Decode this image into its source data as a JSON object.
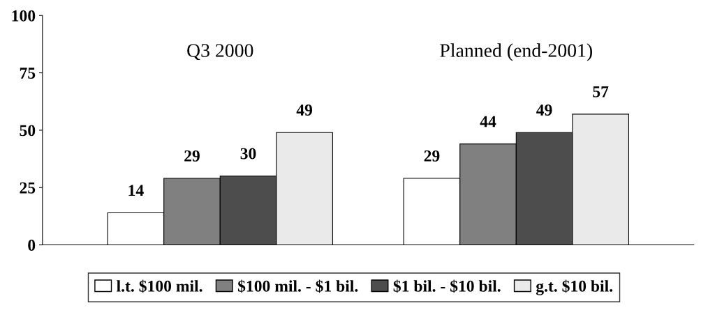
{
  "chart_data": {
    "type": "bar",
    "categories": [
      "Q3 2000",
      "Planned (end-2001)"
    ],
    "series": [
      {
        "name": "l.t. $100 mil.",
        "color": "#ffffff",
        "values": [
          14,
          29
        ]
      },
      {
        "name": "$100 mil. - $1 bil.",
        "color": "#808080",
        "values": [
          29,
          44
        ]
      },
      {
        "name": "$1 bil. - $10 bil.",
        "color": "#4d4d4d",
        "values": [
          30,
          49
        ]
      },
      {
        "name": "g.t. $10 bil.",
        "color": "#eaeaea",
        "values": [
          49,
          57
        ]
      }
    ],
    "ylim": [
      0,
      100
    ],
    "yticks": [
      0,
      25,
      50,
      75,
      100
    ],
    "data_labels": true,
    "grid": false,
    "legend": "bottom"
  }
}
